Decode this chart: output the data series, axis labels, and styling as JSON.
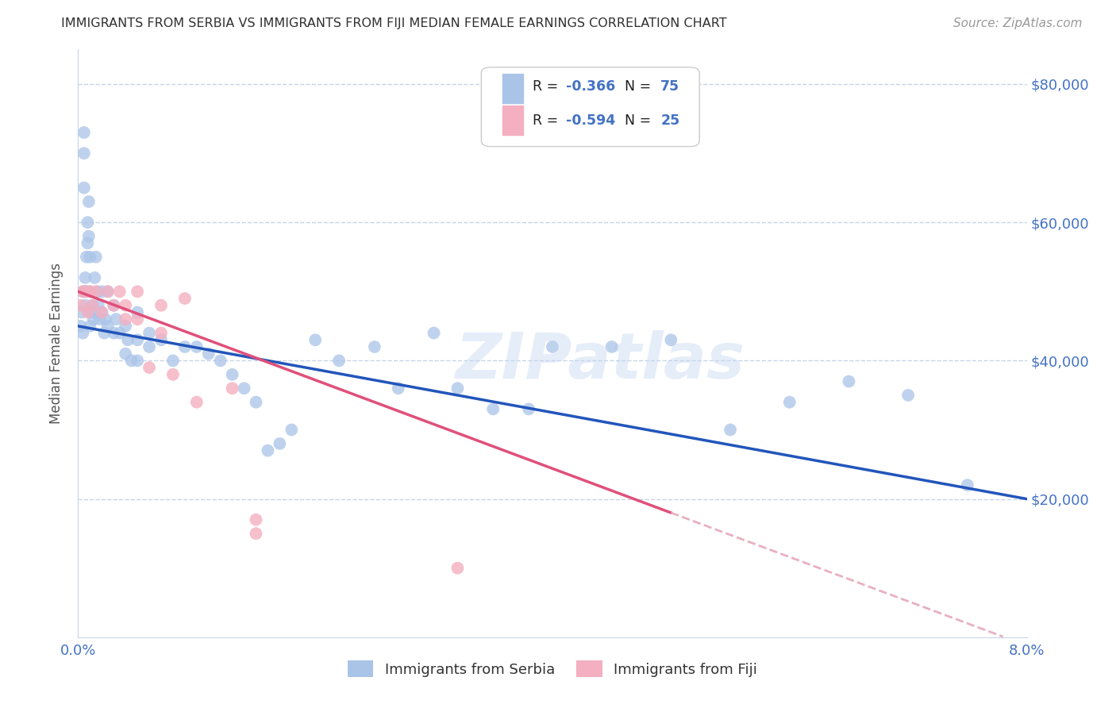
{
  "title": "IMMIGRANTS FROM SERBIA VS IMMIGRANTS FROM FIJI MEDIAN FEMALE EARNINGS CORRELATION CHART",
  "source": "Source: ZipAtlas.com",
  "ylabel": "Median Female Earnings",
  "xlim": [
    0.0,
    0.08
  ],
  "ylim": [
    0,
    85000
  ],
  "serbia_color": "#aac4e8",
  "fiji_color": "#f4afc0",
  "serbia_line_color": "#2255bb",
  "fiji_line_color": "#e0507a",
  "fiji_line_dashed_color": "#e8b0c0",
  "R_serbia": -0.366,
  "N_serbia": 75,
  "R_fiji": -0.594,
  "N_fiji": 25,
  "serbia_x": [
    0.0002,
    0.0003,
    0.0004,
    0.0004,
    0.0005,
    0.0005,
    0.0005,
    0.0006,
    0.0006,
    0.0006,
    0.0007,
    0.0007,
    0.0008,
    0.0008,
    0.0009,
    0.0009,
    0.001,
    0.001,
    0.001,
    0.001,
    0.0012,
    0.0013,
    0.0014,
    0.0014,
    0.0015,
    0.0016,
    0.0017,
    0.0018,
    0.002,
    0.002,
    0.0022,
    0.0023,
    0.0025,
    0.0025,
    0.003,
    0.003,
    0.0032,
    0.0035,
    0.004,
    0.004,
    0.0042,
    0.0045,
    0.005,
    0.005,
    0.005,
    0.006,
    0.006,
    0.007,
    0.008,
    0.009,
    0.01,
    0.011,
    0.012,
    0.013,
    0.014,
    0.015,
    0.016,
    0.017,
    0.018,
    0.02,
    0.022,
    0.025,
    0.027,
    0.03,
    0.032,
    0.035,
    0.038,
    0.04,
    0.045,
    0.05,
    0.055,
    0.06,
    0.065,
    0.07,
    0.075
  ],
  "serbia_y": [
    45000,
    47000,
    50000,
    44000,
    65000,
    70000,
    73000,
    48000,
    50000,
    52000,
    50000,
    55000,
    60000,
    57000,
    58000,
    63000,
    45000,
    47000,
    50000,
    55000,
    48000,
    46000,
    47000,
    52000,
    55000,
    50000,
    48000,
    46000,
    50000,
    47000,
    44000,
    46000,
    50000,
    45000,
    48000,
    44000,
    46000,
    44000,
    45000,
    41000,
    43000,
    40000,
    47000,
    43000,
    40000,
    44000,
    42000,
    43000,
    40000,
    42000,
    42000,
    41000,
    40000,
    38000,
    36000,
    34000,
    27000,
    28000,
    30000,
    43000,
    40000,
    42000,
    36000,
    44000,
    36000,
    33000,
    33000,
    42000,
    42000,
    43000,
    30000,
    34000,
    37000,
    35000,
    22000
  ],
  "fiji_x": [
    0.0002,
    0.0004,
    0.0006,
    0.0008,
    0.001,
    0.0012,
    0.0015,
    0.002,
    0.0025,
    0.003,
    0.0035,
    0.004,
    0.004,
    0.005,
    0.005,
    0.006,
    0.007,
    0.007,
    0.008,
    0.009,
    0.01,
    0.013,
    0.015,
    0.015,
    0.032
  ],
  "fiji_y": [
    48000,
    50000,
    50000,
    47000,
    50000,
    48000,
    50000,
    47000,
    50000,
    48000,
    50000,
    48000,
    46000,
    50000,
    46000,
    39000,
    48000,
    44000,
    38000,
    49000,
    34000,
    36000,
    17000,
    15000,
    10000
  ],
  "watermark": "ZIPatlas",
  "background_color": "#ffffff",
  "grid_color": "#c8d4e8",
  "title_color": "#303030",
  "axis_label_color": "#555555",
  "tick_color": "#4472c4"
}
